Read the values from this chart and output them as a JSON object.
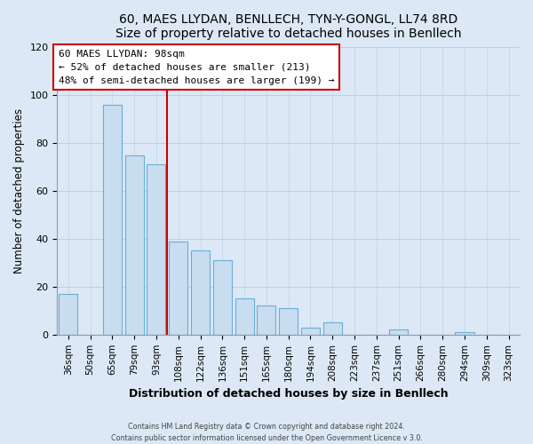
{
  "title": "60, MAES LLYDAN, BENLLECH, TYN-Y-GONGL, LL74 8RD",
  "subtitle": "Size of property relative to detached houses in Benllech",
  "xlabel": "Distribution of detached houses by size in Benllech",
  "ylabel": "Number of detached properties",
  "bar_color": "#c8ddf0",
  "bar_edge_color": "#6aaed6",
  "categories": [
    "36sqm",
    "50sqm",
    "65sqm",
    "79sqm",
    "93sqm",
    "108sqm",
    "122sqm",
    "136sqm",
    "151sqm",
    "165sqm",
    "180sqm",
    "194sqm",
    "208sqm",
    "223sqm",
    "237sqm",
    "251sqm",
    "266sqm",
    "280sqm",
    "294sqm",
    "309sqm",
    "323sqm"
  ],
  "values": [
    17,
    0,
    96,
    75,
    71,
    39,
    35,
    31,
    15,
    12,
    11,
    3,
    5,
    0,
    0,
    2,
    0,
    0,
    1,
    0,
    0
  ],
  "ylim": [
    0,
    120
  ],
  "yticks": [
    0,
    20,
    40,
    60,
    80,
    100,
    120
  ],
  "marker_line_color": "#cc0000",
  "annotation_line1": "60 MAES LLYDAN: 98sqm",
  "annotation_line2": "← 52% of detached houses are smaller (213)",
  "annotation_line3": "48% of semi-detached houses are larger (199) →",
  "annotation_box_edge_color": "#cc0000",
  "footer_line1": "Contains HM Land Registry data © Crown copyright and database right 2024.",
  "footer_line2": "Contains public sector information licensed under the Open Government Licence v 3.0.",
  "background_color": "#dce8f5",
  "plot_background_color": "#dce8f5"
}
